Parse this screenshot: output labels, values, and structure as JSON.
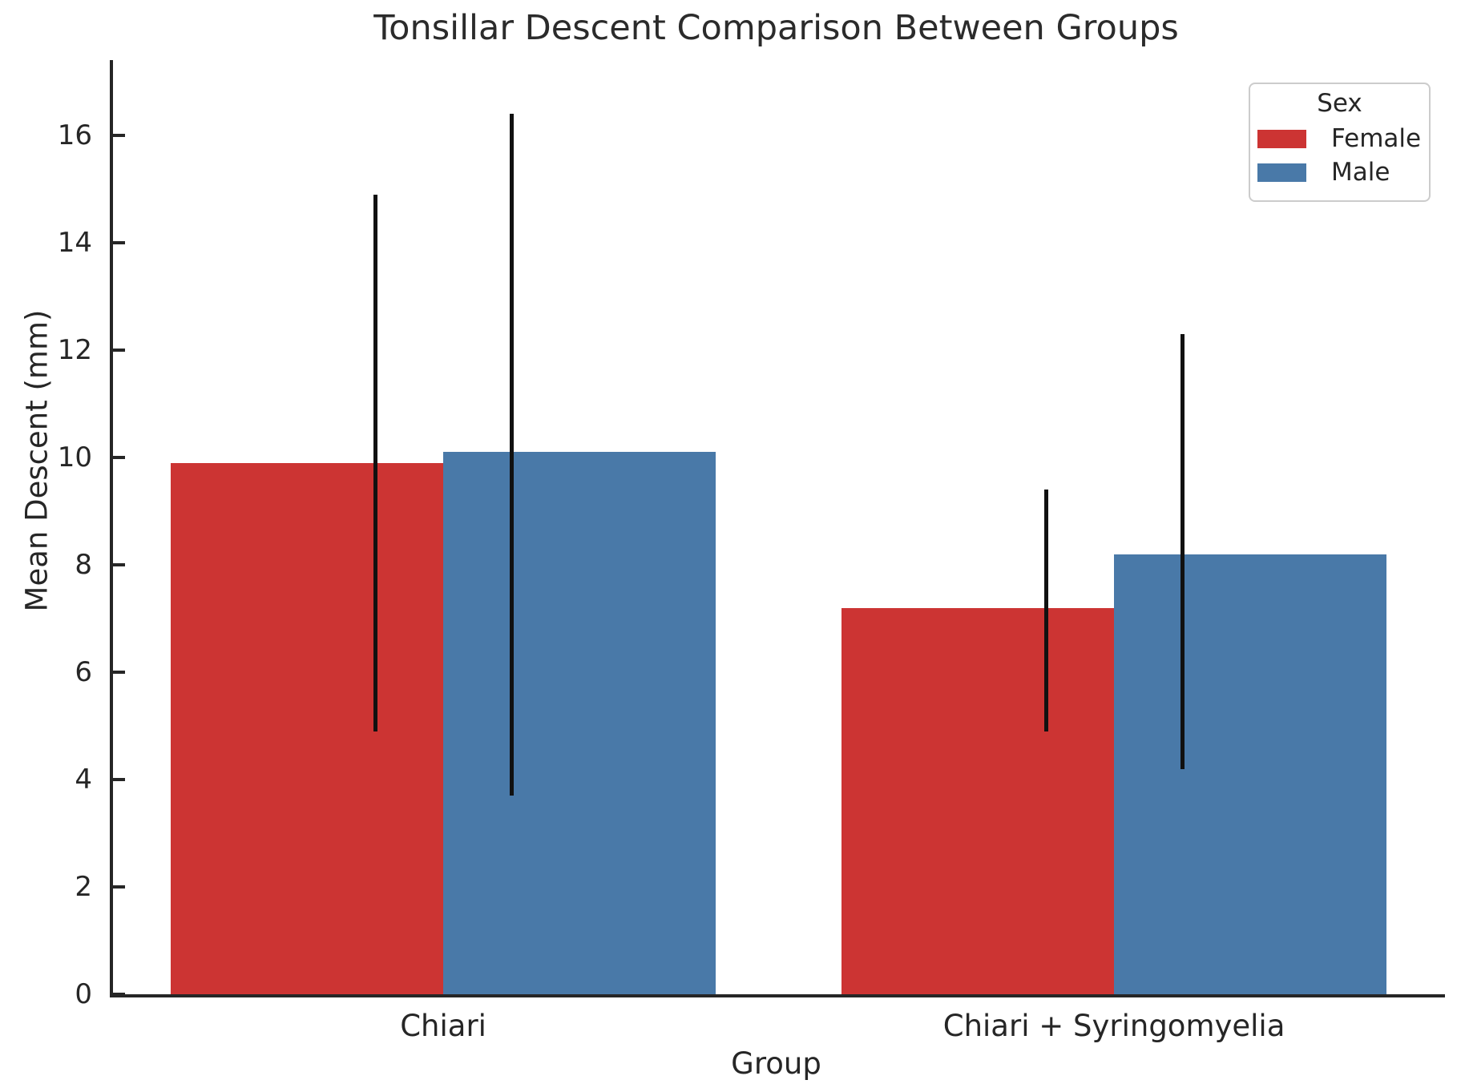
{
  "chart_data": {
    "type": "bar",
    "title": "Tonsillar Descent Comparison Between Groups",
    "xlabel": "Group",
    "ylabel": "Mean Descent (mm)",
    "categories": [
      "Chiari",
      "Chiari + Syringomyelia"
    ],
    "series": [
      {
        "name": "Female",
        "color": "#cc3433",
        "values": [
          9.9,
          7.2
        ],
        "err_low": [
          4.9,
          4.9
        ],
        "err_high": [
          14.9,
          9.4
        ]
      },
      {
        "name": "Male",
        "color": "#4979a8",
        "values": [
          10.1,
          8.2
        ],
        "err_low": [
          3.7,
          4.2
        ],
        "err_high": [
          16.4,
          12.3
        ]
      }
    ],
    "ylim": [
      0,
      17.4
    ],
    "yticks": [
      0,
      2,
      4,
      6,
      8,
      10,
      12,
      14,
      16
    ],
    "grid": false,
    "legend": {
      "title": "Sex",
      "position": "upper right",
      "entries": [
        "Female",
        "Male"
      ]
    }
  }
}
